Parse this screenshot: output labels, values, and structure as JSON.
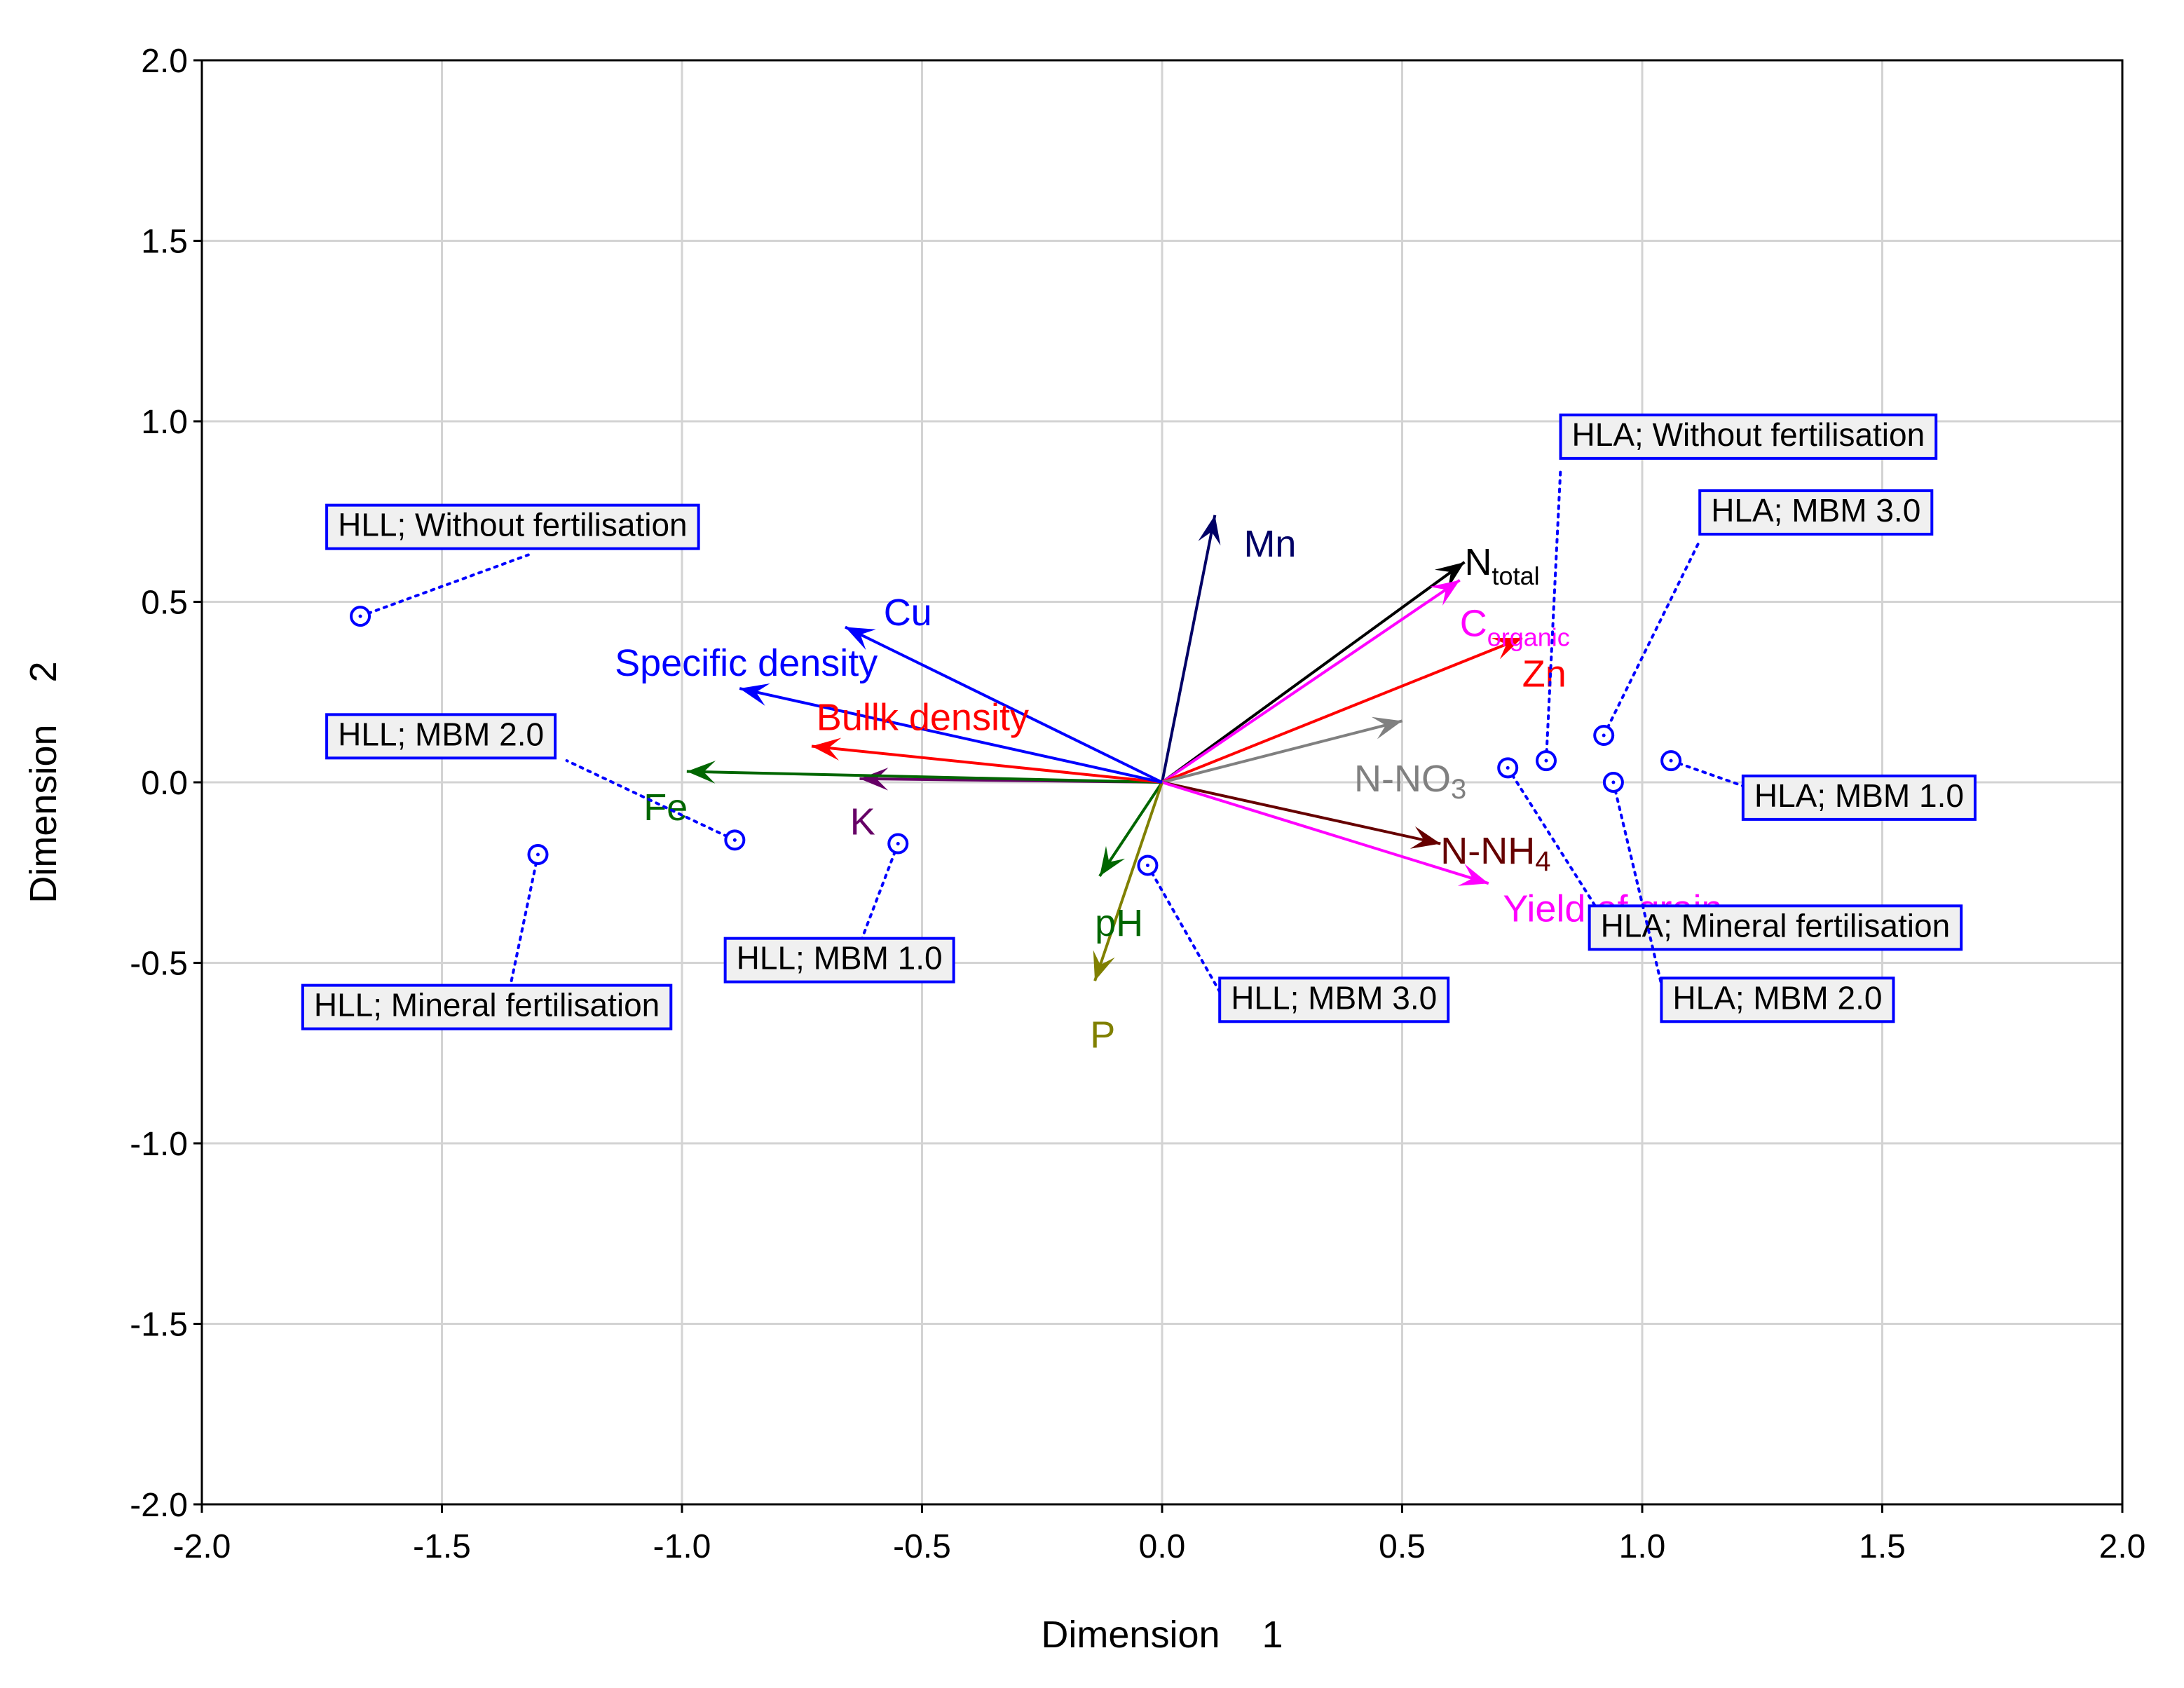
{
  "chart_data": {
    "type": "scatter",
    "subtype": "biplot",
    "title": "",
    "xlabel": "Dimension    1",
    "ylabel": "Dimension    2",
    "xlim": [
      -2.0,
      2.0
    ],
    "ylim": [
      -2.0,
      2.0
    ],
    "xticks": [
      "-2.0",
      "-1.5",
      "-1.0",
      "-0.5",
      "0.0",
      "0.5",
      "1.0",
      "1.5",
      "2.0"
    ],
    "yticks": [
      "2.0",
      "1.5",
      "1.0",
      "0.5",
      "0.0",
      "-0.5",
      "-1.0",
      "-1.5",
      "-2.0"
    ],
    "grid": true,
    "vectors": [
      {
        "name": "Mn",
        "x": 0.11,
        "y": 0.74,
        "color": "#000066",
        "label_x": 0.17,
        "label_y": 0.66
      },
      {
        "name": "Ntotal",
        "main": "N",
        "sub": "total",
        "x": 0.63,
        "y": 0.61,
        "color": "#000000",
        "label_x": 0.63,
        "label_y": 0.61
      },
      {
        "name": "Corganic",
        "main": "C",
        "sub": "organic",
        "x": 0.62,
        "y": 0.56,
        "color": "#ff00ff",
        "label_x": 0.62,
        "label_y": 0.44
      },
      {
        "name": "Zn",
        "x": 0.75,
        "y": 0.4,
        "color": "#ff0000",
        "label_x": 0.75,
        "label_y": 0.3
      },
      {
        "name": "N-NO3",
        "main": "N-NO",
        "sub": "3",
        "sub_baseline": true,
        "x": 0.5,
        "y": 0.17,
        "color": "#808080",
        "label_x": 0.4,
        "label_y": 0.01
      },
      {
        "name": "N-NH4",
        "main": "N-NH",
        "sub": "4",
        "sub_baseline": true,
        "x": 0.58,
        "y": -0.17,
        "color": "#660000",
        "label_x": 0.58,
        "label_y": -0.19
      },
      {
        "name": "Yield of grain",
        "x": 0.68,
        "y": -0.28,
        "color": "#ff00ff",
        "label_x": 0.71,
        "label_y": -0.35
      },
      {
        "name": "pH",
        "x": -0.13,
        "y": -0.26,
        "color": "#006600",
        "label_x": -0.14,
        "label_y": -0.39
      },
      {
        "name": "P",
        "x": -0.14,
        "y": -0.55,
        "color": "#808000",
        "label_x": -0.15,
        "label_y": -0.7
      },
      {
        "name": "K",
        "x": -0.63,
        "y": 0.01,
        "color": "#660066",
        "label_x": -0.65,
        "label_y": -0.11
      },
      {
        "name": "Fe",
        "x": -0.99,
        "y": 0.03,
        "color": "#006600",
        "label_x": -1.08,
        "label_y": -0.07
      },
      {
        "name": "Bullk density",
        "x": -0.73,
        "y": 0.1,
        "color": "#ff0000",
        "label_x": -0.72,
        "label_y": 0.18
      },
      {
        "name": "Specific density",
        "x": -0.88,
        "y": 0.26,
        "color": "#0000ff",
        "label_x": -1.14,
        "label_y": 0.33
      },
      {
        "name": "Cu",
        "x": -0.66,
        "y": 0.43,
        "color": "#0000ff",
        "label_x": -0.58,
        "label_y": 0.47
      }
    ],
    "points": [
      {
        "label": "HLL; Without fertilisation",
        "x": -1.67,
        "y": 0.46,
        "box_x": -1.74,
        "box_y": 0.69,
        "leader_x": -1.32,
        "leader_y": 0.63
      },
      {
        "label": "HLL; MBM 2.0",
        "x": -0.89,
        "y": -0.16,
        "box_x": -1.74,
        "box_y": 0.11,
        "leader_x": -1.24,
        "leader_y": 0.06
      },
      {
        "label": "HLL; Mineral fertilisation",
        "x": -1.3,
        "y": -0.2,
        "box_x": -1.79,
        "box_y": -0.64,
        "leader_x": -1.36,
        "leader_y": -0.58
      },
      {
        "label": "HLL; MBM 1.0",
        "x": -0.55,
        "y": -0.17,
        "box_x": -0.91,
        "box_y": -0.51,
        "leader_x": -0.63,
        "leader_y": -0.45
      },
      {
        "label": "HLL; MBM 3.0",
        "x": -0.03,
        "y": -0.23,
        "box_x": 0.12,
        "box_y": -0.62,
        "leader_x": 0.12,
        "leader_y": -0.58
      },
      {
        "label": "HLA; Without fertilisation",
        "x": 0.8,
        "y": 0.06,
        "box_x": 0.83,
        "box_y": 0.94,
        "leader_x": 0.83,
        "leader_y": 0.87
      },
      {
        "label": "HLA; MBM 3.0",
        "x": 0.92,
        "y": 0.13,
        "box_x": 1.12,
        "box_y": 0.73,
        "leader_x": 1.12,
        "leader_y": 0.67
      },
      {
        "label": "HLA; MBM 1.0",
        "x": 1.06,
        "y": 0.06,
        "box_x": 1.21,
        "box_y": -0.06,
        "leader_x": 1.21,
        "leader_y": -0.01
      },
      {
        "label": "HLA; Mineral fertilisation",
        "x": 0.72,
        "y": 0.04,
        "box_x": 0.89,
        "box_y": -0.42,
        "leader_x": 0.92,
        "leader_y": -0.38
      },
      {
        "label": "HLA; MBM 2.0",
        "x": 0.94,
        "y": 0.0,
        "box_x": 1.04,
        "box_y": -0.62,
        "leader_x": 1.04,
        "leader_y": -0.56
      }
    ]
  }
}
